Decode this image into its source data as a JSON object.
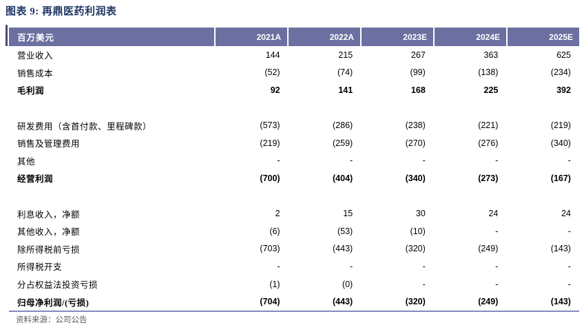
{
  "title": "图表 9: 再鼎医药利润表",
  "colors": {
    "title_text": "#1F3864",
    "header_bg": "#6C70A0",
    "header_text": "#FFFFFF",
    "left_tick": "#474B70",
    "bottom_line": "#8389BC"
  },
  "table": {
    "unit_label": "百万美元",
    "columns": [
      "2021A",
      "2022A",
      "2023E",
      "2024E",
      "2025E"
    ],
    "rows": [
      {
        "label": "营业收入",
        "values": [
          "144",
          "215",
          "267",
          "363",
          "625"
        ],
        "bold": false
      },
      {
        "label": "销售成本",
        "values": [
          "(52)",
          "(74)",
          "(99)",
          "(138)",
          "(234)"
        ],
        "bold": false
      },
      {
        "label": "毛利润",
        "values": [
          "92",
          "141",
          "168",
          "225",
          "392"
        ],
        "bold": true
      },
      {
        "label": "",
        "values": [
          "",
          "",
          "",
          "",
          ""
        ],
        "blank": true
      },
      {
        "label": "研发费用（含首付款、里程碑款）",
        "values": [
          "(573)",
          "(286)",
          "(238)",
          "(221)",
          "(219)"
        ],
        "bold": false
      },
      {
        "label": "销售及管理费用",
        "values": [
          "(219)",
          "(259)",
          "(270)",
          "(276)",
          "(340)"
        ],
        "bold": false
      },
      {
        "label": "其他",
        "values": [
          "-",
          "-",
          "-",
          "-",
          "-"
        ],
        "bold": false
      },
      {
        "label": "经营利润",
        "values": [
          "(700)",
          "(404)",
          "(340)",
          "(273)",
          "(167)"
        ],
        "bold": true
      },
      {
        "label": "",
        "values": [
          "",
          "",
          "",
          "",
          ""
        ],
        "blank": true
      },
      {
        "label": "利息收入，净额",
        "values": [
          "2",
          "15",
          "30",
          "24",
          "24"
        ],
        "bold": false
      },
      {
        "label": "其他收入，净额",
        "values": [
          "(6)",
          "(53)",
          "(10)",
          "-",
          "-"
        ],
        "bold": false
      },
      {
        "label": "除所得税前亏损",
        "values": [
          "(703)",
          "(443)",
          "(320)",
          "(249)",
          "(143)"
        ],
        "bold": false
      },
      {
        "label": "所得税开支",
        "values": [
          "-",
          "-",
          "-",
          "-",
          "-"
        ],
        "bold": false
      },
      {
        "label": "分占权益法投资亏损",
        "values": [
          "(1)",
          "(0)",
          "-",
          "-",
          "-"
        ],
        "bold": false
      },
      {
        "label": "归母净利润/(亏损)",
        "values": [
          "(704)",
          "(443)",
          "(320)",
          "(249)",
          "(143)"
        ],
        "bold": true
      }
    ],
    "source_note": "资料来源：公司公告"
  }
}
